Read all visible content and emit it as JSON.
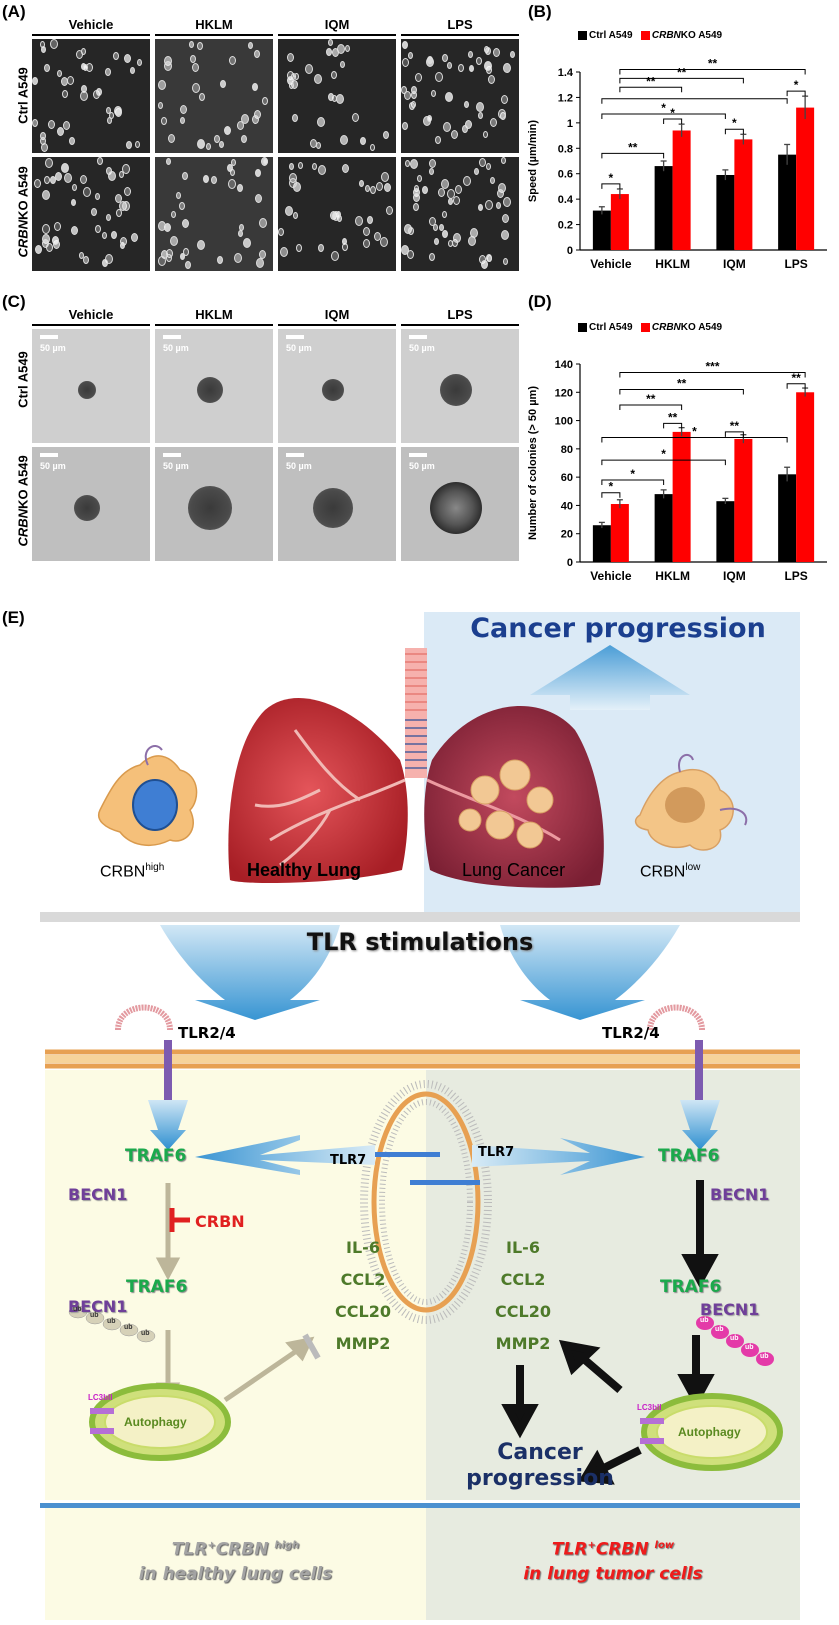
{
  "panelA": {
    "label": "(A)",
    "columns": [
      "Vehicle",
      "HKLM",
      "IQM",
      "LPS"
    ],
    "rows": [
      {
        "plain": "Ctrl A549",
        "italic": ""
      },
      {
        "italic": "CRBN",
        "plain": "KO A549"
      }
    ]
  },
  "panelB": {
    "label": "(B)",
    "legend": [
      {
        "plain": "Ctrl A549",
        "italic": "",
        "color": "#000000"
      },
      {
        "italic": "CRBN",
        "plain": "KO A549",
        "color": "#ff0000"
      }
    ]
  },
  "panelC": {
    "label": "(C)",
    "columns": [
      "Vehicle",
      "HKLM",
      "IQM",
      "LPS"
    ],
    "scale": "50 µm",
    "rows": [
      {
        "plain": "Ctrl A549",
        "italic": ""
      },
      {
        "italic": "CRBN",
        "plain": "KO A549"
      }
    ]
  },
  "panelD": {
    "label": "(D)",
    "legend": [
      {
        "plain": "Ctrl A549",
        "italic": "",
        "color": "#000000"
      },
      {
        "italic": "CRBN",
        "plain": "KO A549",
        "color": "#ff0000"
      }
    ]
  },
  "chart_data": [
    {
      "type": "bar",
      "categories": [
        "Vehicle",
        "HKLM",
        "IQM",
        "LPS"
      ],
      "series": [
        {
          "name": "Ctrl A549",
          "values": [
            0.31,
            0.66,
            0.59,
            0.75
          ],
          "errors": [
            0.03,
            0.04,
            0.04,
            0.08
          ],
          "color": "#000000"
        },
        {
          "name": "CRBNKO A549",
          "values": [
            0.44,
            0.94,
            0.87,
            1.12
          ],
          "errors": [
            0.04,
            0.05,
            0.04,
            0.09
          ],
          "color": "#ff0000"
        }
      ],
      "ylabel": "Speed (µm/min)",
      "ylim": [
        0,
        1.4
      ],
      "yticks": [
        "0",
        "0.2",
        "0.4",
        "0.6",
        "0.8",
        "1",
        "1.2",
        "1.4"
      ],
      "brackets": [
        {
          "from": [
            0,
            0
          ],
          "to": [
            0,
            1
          ],
          "y": 0.52,
          "label": "*"
        },
        {
          "from": [
            0,
            0
          ],
          "to": [
            1,
            0
          ],
          "y": 0.76,
          "label": "**"
        },
        {
          "from": [
            1,
            0
          ],
          "to": [
            1,
            1
          ],
          "y": 1.03,
          "label": "*"
        },
        {
          "from": [
            2,
            0
          ],
          "to": [
            2,
            1
          ],
          "y": 0.95,
          "label": "*"
        },
        {
          "from": [
            0,
            0
          ],
          "to": [
            2,
            0
          ],
          "y": 1.07,
          "label": "*"
        },
        {
          "from": [
            3,
            0
          ],
          "to": [
            3,
            1
          ],
          "y": 1.25,
          "label": "*"
        },
        {
          "from": [
            0,
            0
          ],
          "to": [
            3,
            0
          ],
          "y": 1.19,
          "label": ""
        },
        {
          "from": [
            0,
            1
          ],
          "to": [
            1,
            1
          ],
          "y": 1.28,
          "label": "**"
        },
        {
          "from": [
            0,
            1
          ],
          "to": [
            2,
            1
          ],
          "y": 1.35,
          "label": "**"
        },
        {
          "from": [
            0,
            1
          ],
          "to": [
            3,
            1
          ],
          "y": 1.42,
          "label": "**"
        }
      ]
    },
    {
      "type": "bar",
      "categories": [
        "Vehicle",
        "HKLM",
        "IQM",
        "LPS"
      ],
      "series": [
        {
          "name": "Ctrl A549",
          "values": [
            26,
            48,
            43,
            62
          ],
          "errors": [
            2,
            3,
            2,
            5
          ],
          "color": "#000000"
        },
        {
          "name": "CRBNKO A549",
          "values": [
            41,
            92,
            87,
            120
          ],
          "errors": [
            3,
            3,
            3,
            3
          ],
          "color": "#ff0000"
        }
      ],
      "ylabel": "Number of colonies (> 50 µm)",
      "ylim": [
        0,
        140
      ],
      "yticks": [
        "0",
        "20",
        "40",
        "60",
        "80",
        "100",
        "120",
        "140"
      ],
      "brackets": [
        {
          "from": [
            0,
            0
          ],
          "to": [
            0,
            1
          ],
          "y": 49,
          "label": "*"
        },
        {
          "from": [
            0,
            0
          ],
          "to": [
            1,
            0
          ],
          "y": 58,
          "label": "*"
        },
        {
          "from": [
            0,
            0
          ],
          "to": [
            2,
            0
          ],
          "y": 72,
          "label": "*"
        },
        {
          "from": [
            1,
            0
          ],
          "to": [
            1,
            1
          ],
          "y": 98,
          "label": "**"
        },
        {
          "from": [
            2,
            0
          ],
          "to": [
            2,
            1
          ],
          "y": 92,
          "label": "**"
        },
        {
          "from": [
            0,
            0
          ],
          "to": [
            3,
            0
          ],
          "y": 88,
          "label": "*"
        },
        {
          "from": [
            3,
            0
          ],
          "to": [
            3,
            1
          ],
          "y": 126,
          "label": "**"
        },
        {
          "from": [
            0,
            1
          ],
          "to": [
            1,
            1
          ],
          "y": 111,
          "label": "**"
        },
        {
          "from": [
            0,
            1
          ],
          "to": [
            2,
            1
          ],
          "y": 122,
          "label": "**"
        },
        {
          "from": [
            0,
            1
          ],
          "to": [
            3,
            1
          ],
          "y": 134,
          "label": "***"
        }
      ]
    }
  ],
  "panelE": {
    "label": "(E)",
    "cancer_progression_top": "Cancer progression",
    "crbn_high_base": "CRBN",
    "crbn_high_sup": "high",
    "healthy_lung": "Healthy Lung",
    "lung_cancer": "Lung Cancer",
    "crbn_low_base": "CRBN",
    "crbn_low_sup": "low",
    "tlr_stimulations": "TLR stimulations",
    "tlr24_left": "TLR2/4",
    "tlr24_right": "TLR2/4",
    "tlr7_left": "TLR7",
    "tlr7_right": "TLR7",
    "traf6_left_top": "TRAF6",
    "traf6_right_top": "TRAF6",
    "becn1_left": "BECN1",
    "becn1_right": "BECN1",
    "crbn_inhibit": "CRBN",
    "traf6_left_mid": "TRAF6",
    "traf6_right_mid": "TRAF6",
    "becn1_left_mid": "BECN1",
    "becn1_right_mid": "BECN1",
    "ub": "ub",
    "cytokines_left": [
      "IL-6",
      "CCL2",
      "CCL20",
      "MMP2"
    ],
    "cytokines_right": [
      "IL-6",
      "CCL2",
      "CCL20",
      "MMP2"
    ],
    "lc3": "LC3bII",
    "autophagy": "Autophagy",
    "cancer_progression_bottom_1": "Cancer",
    "cancer_progression_bottom_2": "progression",
    "footer_left_1a": "TLR",
    "footer_left_1sup1": "+",
    "footer_left_1b": "CRBN",
    "footer_left_1sup2": "high",
    "footer_left_2": "in healthy lung cells",
    "footer_right_1a": "TLR",
    "footer_right_1sup1": "+",
    "footer_right_1b": "CRBN",
    "footer_right_1sup2": "low",
    "footer_right_2": "in lung tumor cells"
  }
}
